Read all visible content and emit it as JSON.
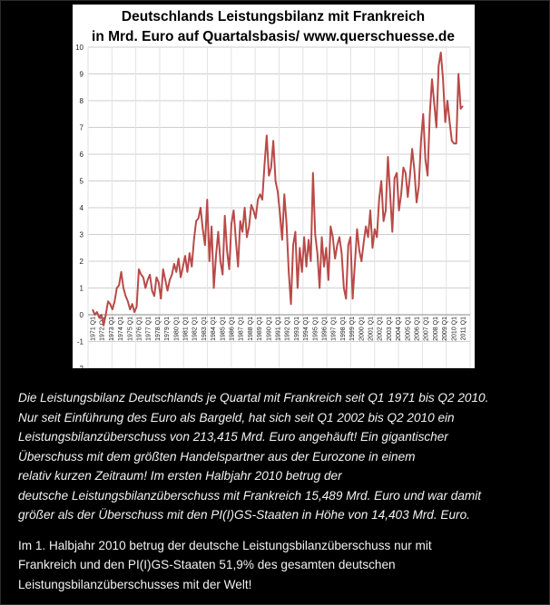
{
  "chart_data": {
    "type": "line",
    "title": "Deutschlands Leistungsbilanz mit Frankreich",
    "subtitle": "in Mrd. Euro auf Quartalsbasis/ www.querschuesse.de",
    "xlabel": "",
    "ylabel": "",
    "ylim": [
      -2,
      10
    ],
    "yticks": [
      -2,
      -1,
      0,
      1,
      2,
      3,
      4,
      5,
      6,
      7,
      8,
      9,
      10
    ],
    "xticks": [
      "1971 Q1",
      "1972 Q1",
      "1973 Q1",
      "1974 Q1",
      "1975 Q1",
      "1976 Q1",
      "1977 Q1",
      "1978 Q1",
      "1979 Q1",
      "1980 Q1",
      "1981 Q1",
      "1982 Q1",
      "1983 Q1",
      "1984 Q1",
      "1985 Q1",
      "1986 Q1",
      "1987 Q1",
      "1988 Q1",
      "1989 Q1",
      "1990 Q1",
      "1991 Q1",
      "1992 Q1",
      "1993 Q1",
      "1994 Q1",
      "1995 Q1",
      "1996 Q1",
      "1997 Q1",
      "1998 Q1",
      "1999 Q1",
      "2000 Q1",
      "2001 Q1",
      "2002 Q1",
      "2003 Q1",
      "2004 Q1",
      "2005 Q1",
      "2006 Q1",
      "2007 Q1",
      "2008 Q1",
      "2009 Q1",
      "2010 Q1",
      "2011 Q1"
    ],
    "grid": true,
    "legend": "none",
    "line_color": "#b94a48",
    "series": [
      {
        "values": [
          0.2,
          0.0,
          0.1,
          -0.1,
          0.0,
          -0.4,
          0.0,
          0.5,
          0.4,
          0.2,
          0.5,
          1.0,
          1.1,
          1.6,
          1.0,
          0.7,
          0.5,
          0.2,
          0.4,
          0.1,
          0.3,
          1.7,
          1.5,
          1.4,
          1.0,
          1.3,
          1.5,
          0.9,
          0.7,
          1.4,
          1.2,
          0.6,
          1.7,
          1.3,
          0.9,
          1.3,
          1.5,
          1.9,
          1.6,
          2.1,
          1.4,
          1.8,
          2.2,
          1.6,
          2.3,
          1.8,
          2.8,
          3.5,
          3.6,
          4.0,
          3.2,
          2.6,
          4.3,
          2.0,
          3.3,
          1.0,
          2.2,
          3.1,
          2.0,
          1.5,
          3.7,
          2.4,
          1.7,
          3.4,
          3.9,
          2.8,
          1.8,
          3.5,
          3.1,
          4.0,
          2.9,
          3.3,
          4.1,
          3.9,
          3.6,
          4.3,
          4.5,
          4.3,
          5.6,
          6.7,
          5.2,
          5.5,
          6.5,
          5.0,
          4.6,
          3.8,
          2.8,
          4.5,
          3.4,
          1.6,
          0.4,
          2.6,
          3.1,
          1.0,
          2.5,
          1.6,
          2.9,
          1.8,
          2.8,
          2.0,
          5.3,
          3.0,
          2.3,
          1.0,
          2.9,
          1.8,
          2.5,
          1.3,
          3.3,
          2.9,
          2.1,
          2.6,
          2.9,
          2.3,
          1.0,
          0.6,
          2.6,
          2.9,
          0.6,
          1.9,
          3.2,
          2.4,
          2.0,
          2.7,
          3.3,
          2.9,
          3.9,
          2.5,
          3.2,
          2.9,
          4.3,
          5.0,
          3.5,
          3.9,
          5.9,
          4.5,
          3.1,
          5.1,
          5.3,
          3.9,
          4.5,
          5.5,
          5.3,
          4.4,
          5.2,
          6.2,
          5.4,
          4.2,
          4.8,
          6.5,
          7.5,
          5.8,
          5.2,
          7.5,
          8.8,
          7.9,
          7.0,
          9.3,
          9.8,
          8.8,
          7.2,
          8.0,
          7.2,
          6.5,
          6.4,
          6.4,
          9.0,
          7.7,
          7.8
        ]
      }
    ]
  },
  "caption": {
    "para1_lines": [
      "Die Leistungsbilanz Deutschlands je Quartal mit Frankreich seit Q1 1971 bis Q2 2010.",
      "Nur seit  Einführung des Euro als Bargeld, hat sich seit Q1 2002 bis Q2 2010 ein",
      "Leistungsbilanzüberschuss von 213,415 Mrd. Euro angehäuft! Ein gigantischer",
      "Überschuss mit dem größten Handelspartner aus der Eurozone in einem",
      "relativ kurzen Zeitraum! Im ersten Halbjahr 2010 betrug der",
      "deutsche Leistungsbilanzüberschuss mit Frankreich 15,489 Mrd. Euro und war damit",
      "größer als der Überschuss mit den PI(I)GS-Staaten in Höhe von 14,403 Mrd. Euro."
    ],
    "para2_lines": [
      "Im 1. Halbjahr 2010 betrug der deutsche Leistungsbilanzüberschuss nur mit",
      "Frankreich und den PI(I)GS-Staaten 51,9% des gesamten deutschen",
      "Leistungsbilanzüberschusses mit der Welt!"
    ]
  }
}
